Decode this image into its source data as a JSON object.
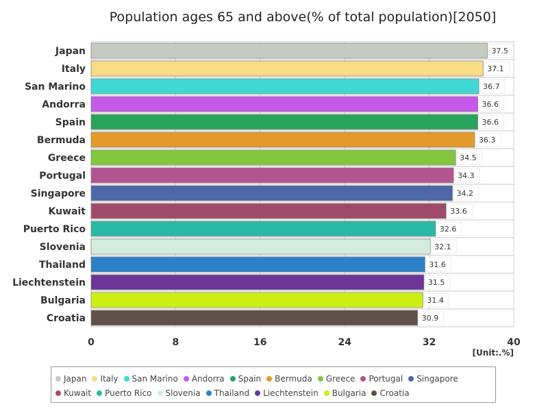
{
  "chart_data": {
    "type": "bar",
    "orientation": "horizontal",
    "title": "Population ages 65 and above(% of total population)[2050]",
    "unit_label": "[Unit:.%]",
    "xlim": [
      0,
      40
    ],
    "x_ticks": [
      0,
      8,
      16,
      24,
      32,
      40
    ],
    "categories": [
      "Japan",
      "Italy",
      "San Marino",
      "Andorra",
      "Spain",
      "Bermuda",
      "Greece",
      "Portugal",
      "Singapore",
      "Kuwait",
      "Puerto Rico",
      "Slovenia",
      "Thailand",
      "Liechtenstein",
      "Bulgaria",
      "Croatia"
    ],
    "values": [
      37.5,
      37.1,
      36.7,
      36.6,
      36.6,
      36.3,
      34.5,
      34.3,
      34.2,
      33.6,
      32.6,
      32.1,
      31.6,
      31.5,
      31.4,
      30.9
    ],
    "colors": [
      "#c5cbbf",
      "#f8dc85",
      "#3fd8d3",
      "#c658ea",
      "#2aa35c",
      "#e39a28",
      "#82c73f",
      "#b35492",
      "#4d67a8",
      "#a04a6a",
      "#2ab9a6",
      "#d3ecdd",
      "#2c82c7",
      "#6d3597",
      "#cdef14",
      "#5f5048"
    ],
    "legend": [
      "Japan",
      "Italy",
      "San Marino",
      "Andorra",
      "Spain",
      "Bermuda",
      "Greece",
      "Portugal",
      "Singapore",
      "Kuwait",
      "Puerto Rico",
      "Slovenia",
      "Thailand",
      "Liechtenstein",
      "Bulgaria",
      "Croatia"
    ],
    "grid": true
  }
}
